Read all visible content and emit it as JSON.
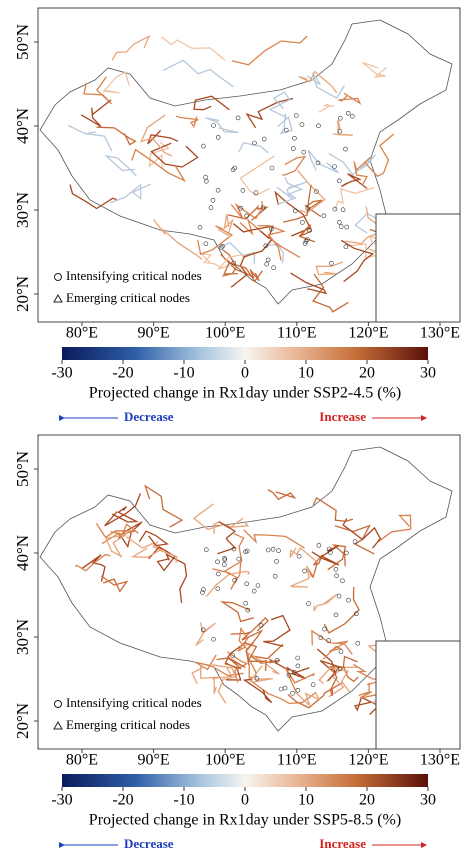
{
  "panels": [
    {
      "lat_ticks": [
        {
          "value": 50,
          "label": "50°N"
        },
        {
          "value": 40,
          "label": "40°N"
        },
        {
          "value": 30,
          "label": "30°N"
        },
        {
          "value": 20,
          "label": "20°N"
        }
      ],
      "lon_ticks": [
        {
          "value": 80,
          "label": "80°E"
        },
        {
          "value": 90,
          "label": "90°E"
        },
        {
          "value": 100,
          "label": "100°E"
        },
        {
          "value": 110,
          "label": "110°E"
        },
        {
          "value": 120,
          "label": "120°E"
        },
        {
          "value": 130,
          "label": "130°E"
        }
      ],
      "legend": [
        "Intensifying critical nodes",
        "Emerging critical nodes"
      ],
      "colorbar": {
        "range": [
          -30,
          30
        ],
        "ticks": [
          -30,
          -20,
          -10,
          0,
          10,
          20,
          30
        ],
        "label": "Projected change in Rx1day under SSP2-4.5 (%)"
      },
      "decrease": "Decrease",
      "increase": "Increase"
    },
    {
      "lat_ticks": [
        {
          "value": 50,
          "label": "50°N"
        },
        {
          "value": 40,
          "label": "40°N"
        },
        {
          "value": 30,
          "label": "30°N"
        },
        {
          "value": 20,
          "label": "20°N"
        }
      ],
      "lon_ticks": [
        {
          "value": 80,
          "label": "80°E"
        },
        {
          "value": 90,
          "label": "90°E"
        },
        {
          "value": 100,
          "label": "100°E"
        },
        {
          "value": 110,
          "label": "110°E"
        },
        {
          "value": 120,
          "label": "120°E"
        },
        {
          "value": 130,
          "label": "130°E"
        }
      ],
      "legend": [
        "Intensifying critical nodes",
        "Emerging critical nodes"
      ],
      "colorbar": {
        "range": [
          -30,
          30
        ],
        "ticks": [
          -30,
          -20,
          -10,
          0,
          10,
          20,
          30
        ],
        "label": "Projected change in Rx1day under SSP5-8.5 (%)"
      },
      "decrease": "Decrease",
      "increase": "Increase"
    }
  ]
}
